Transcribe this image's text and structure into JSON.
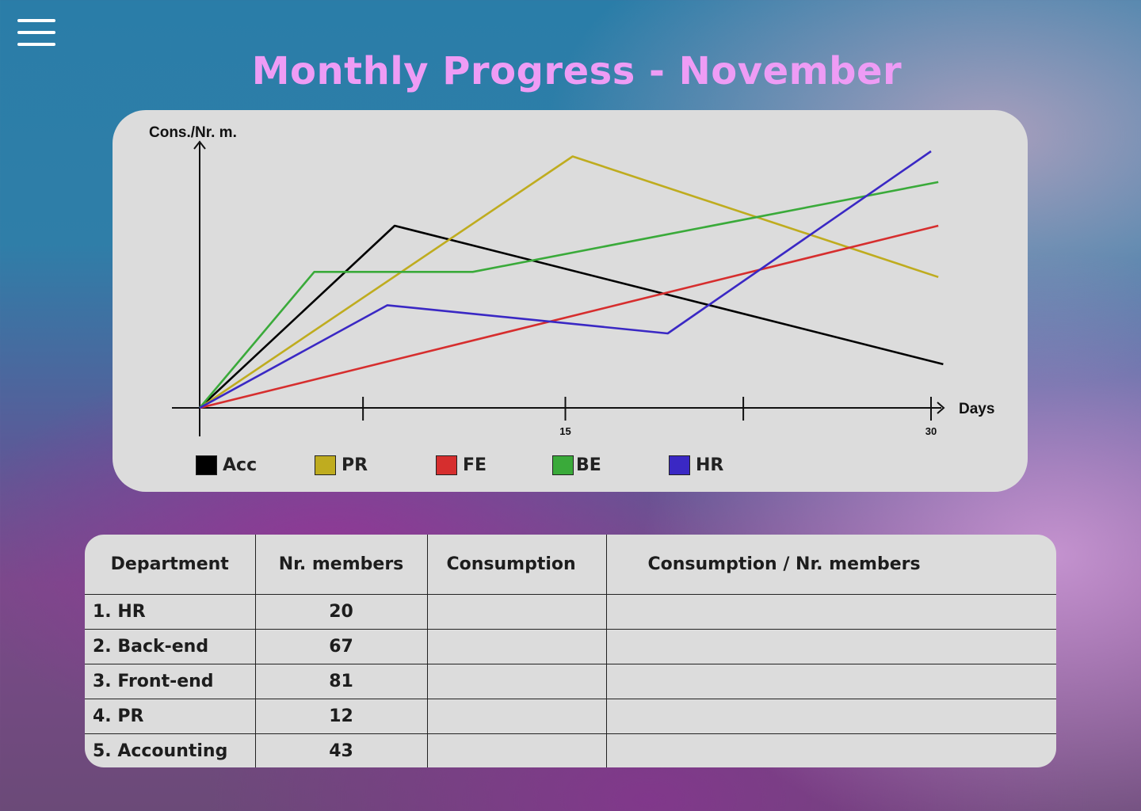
{
  "header": {
    "menu_icon": "hamburger-menu-icon",
    "title": "Monthly Progress - November"
  },
  "chart_data": {
    "type": "line",
    "ylabel": "Cons./Nr. m.",
    "xlabel": "Days",
    "xlim": [
      0,
      30
    ],
    "x_ticks": [
      {
        "value": 6.7,
        "label": ""
      },
      {
        "value": 15,
        "label": "15"
      },
      {
        "value": 22.3,
        "label": ""
      },
      {
        "value": 30,
        "label": "30"
      }
    ],
    "ylim": [
      0,
      100
    ],
    "grid": false,
    "legend_position": "bottom",
    "series": [
      {
        "name": "Acc",
        "color": "#000000",
        "x": [
          0,
          8,
          30.5
        ],
        "y": [
          0,
          71,
          17
        ]
      },
      {
        "name": "PR",
        "color": "#bfac1f",
        "x": [
          0,
          15.3,
          30.3
        ],
        "y": [
          0,
          98,
          51
        ]
      },
      {
        "name": "FE",
        "color": "#d62e2e",
        "x": [
          0,
          30.3
        ],
        "y": [
          0,
          71
        ]
      },
      {
        "name": "BE",
        "color": "#3aaa3a",
        "x": [
          0,
          4.7,
          11.2,
          30.3
        ],
        "y": [
          0,
          53,
          53,
          88
        ]
      },
      {
        "name": "HR",
        "color": "#3a28c4",
        "x": [
          0,
          7.7,
          19.2,
          30
        ],
        "y": [
          0,
          40,
          29,
          100
        ]
      }
    ]
  },
  "table": {
    "headers": [
      "Department",
      "Nr. members",
      "Consumption",
      "Consumption / Nr. members"
    ],
    "rows": [
      [
        "1. HR",
        "20",
        "",
        ""
      ],
      [
        "2. Back-end",
        "67",
        "",
        ""
      ],
      [
        "3. Front-end",
        "81",
        "",
        ""
      ],
      [
        "4. PR",
        "12",
        "",
        ""
      ],
      [
        "5. Accounting",
        "43",
        "",
        ""
      ]
    ]
  }
}
